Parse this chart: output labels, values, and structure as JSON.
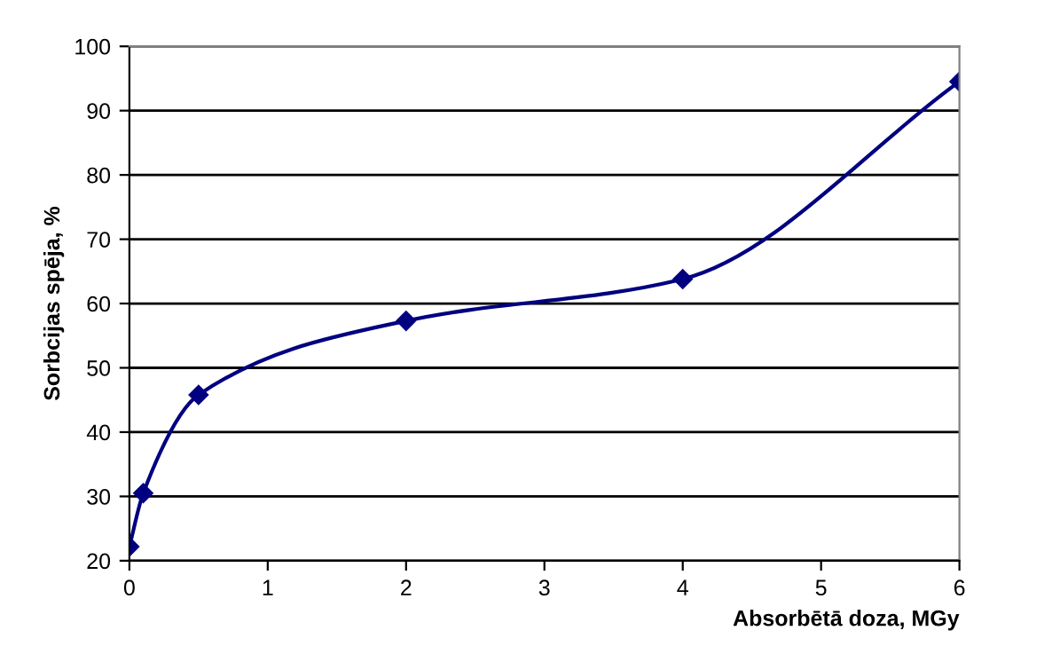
{
  "chart_data": {
    "type": "line",
    "xlabel": "Absorbētā doza, MGy",
    "ylabel": "Sorbcijas spēja, %",
    "x": [
      0,
      0.1,
      0.5,
      2,
      4,
      6
    ],
    "series": [
      {
        "color": "#000080",
        "values": [
          22.2,
          30.5,
          45.8,
          57.3,
          63.8,
          94.5
        ]
      }
    ],
    "xlim": [
      0,
      6
    ],
    "xticks": [
      0,
      1,
      2,
      3,
      4,
      5,
      6
    ],
    "ylim": [
      20,
      100
    ],
    "yticks": [
      20,
      30,
      40,
      50,
      60,
      70,
      80,
      90,
      100
    ],
    "grid": "y",
    "marker": "diamond",
    "line_style": "solid",
    "legend": false
  }
}
